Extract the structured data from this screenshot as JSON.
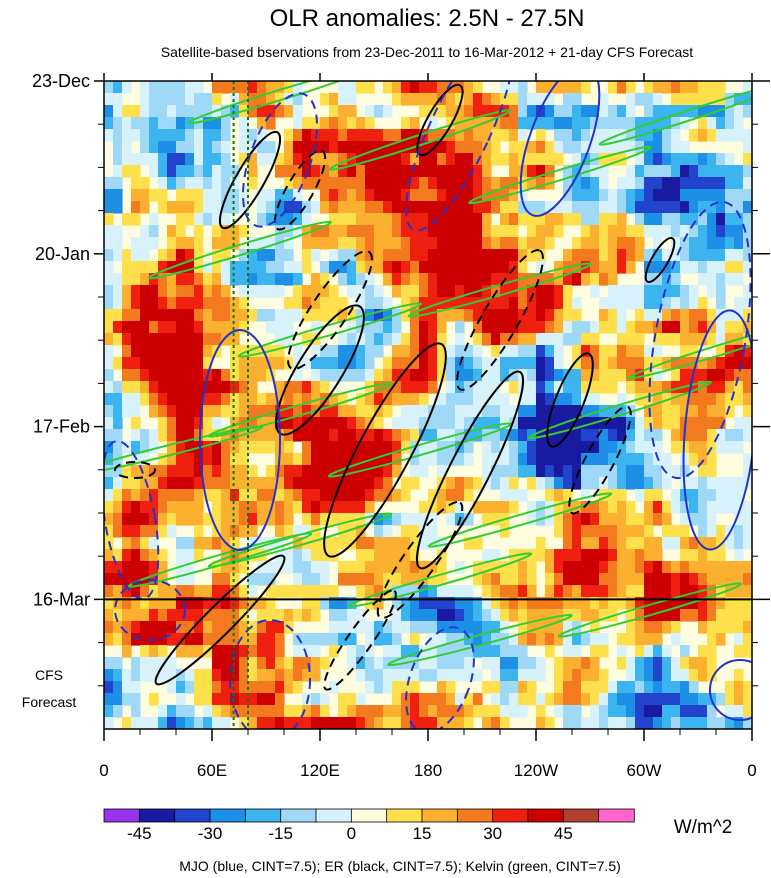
{
  "chart_data": {
    "type": "heatmap",
    "title": "OLR anomalies: 2.5N - 27.5N",
    "subtitle": "Satellite-based bservations from 23-Dec-2011 to 16-Mar-2012 + 21-day CFS Forecast",
    "x_ticks": [
      {
        "label": "0",
        "lon": 0
      },
      {
        "label": "60E",
        "lon": 60
      },
      {
        "label": "120E",
        "lon": 120
      },
      {
        "label": "180",
        "lon": 180
      },
      {
        "label": "120W",
        "lon": 240
      },
      {
        "label": "60W",
        "lon": 300
      },
      {
        "label": "0",
        "lon": 360
      }
    ],
    "x_range": [
      0,
      360
    ],
    "y_ticks": [
      {
        "label": "23-Dec",
        "day": 0
      },
      {
        "label": "20-Jan",
        "day": 28
      },
      {
        "label": "17-Feb",
        "day": 56
      },
      {
        "label": "16-Mar",
        "day": 84
      }
    ],
    "y_range_days": [
      0,
      105
    ],
    "observation_end_day": 84,
    "forecast_label": [
      "CFS",
      "Forecast"
    ],
    "colorbar": {
      "unit": "W/m^2",
      "labels": [
        "-45",
        "-30",
        "-15",
        "0",
        "15",
        "30",
        "45"
      ],
      "label_bins": [
        1,
        3,
        5,
        7,
        9,
        11,
        13
      ],
      "colors": [
        "#9933ee",
        "#1a1aa0",
        "#2244cc",
        "#1e8fe6",
        "#3cb4f0",
        "#a0d8f8",
        "#d8f2fc",
        "#fffde0",
        "#fde04c",
        "#fbb030",
        "#f47a20",
        "#f02010",
        "#cc0000",
        "#b04030",
        "#ff66cc"
      ]
    },
    "reference_lines_lon": [
      72,
      80
    ],
    "footer": "MJO (blue, CINT=7.5); ER (black, CINT=7.5); Kelvin (green, CINT=7.5)"
  }
}
